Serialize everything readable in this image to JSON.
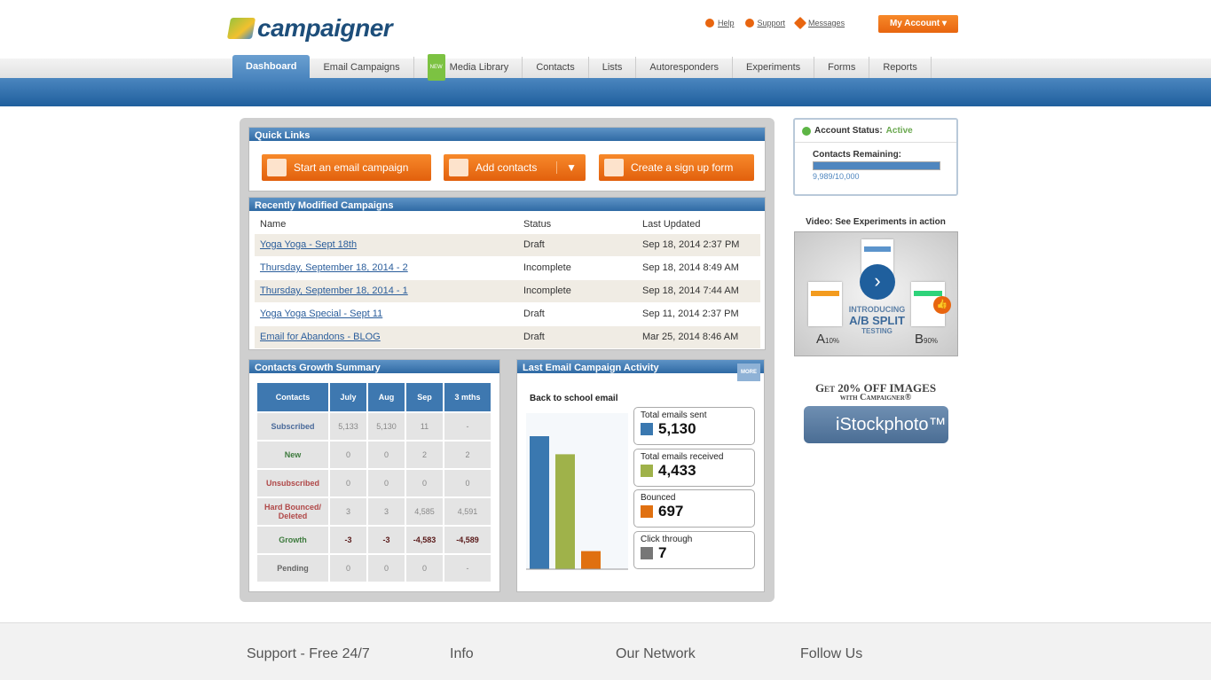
{
  "header": {
    "logo": "campaigner",
    "links": [
      {
        "label": "Help",
        "icon": "help-icon",
        "color": "#e8650f"
      },
      {
        "label": "Support",
        "icon": "support-icon",
        "color": "#e8650f"
      },
      {
        "label": "Messages",
        "icon": "messages-icon",
        "color": "#e8650f"
      }
    ],
    "my_account": "My Account ▾"
  },
  "nav": {
    "tabs": [
      {
        "label": "Dashboard",
        "active": true
      },
      {
        "label": "Email Campaigns"
      },
      {
        "label": "Media Library",
        "badge": "NEW"
      },
      {
        "label": "Contacts"
      },
      {
        "label": "Lists"
      },
      {
        "label": "Autoresponders"
      },
      {
        "label": "Experiments"
      },
      {
        "label": "Forms"
      },
      {
        "label": "Reports"
      }
    ]
  },
  "quick_links": {
    "title": "Quick Links",
    "buttons": [
      "Start an email campaign",
      "Add contacts",
      "Create a sign up form"
    ]
  },
  "recent": {
    "title": "Recently Modified Campaigns",
    "columns": [
      "Name",
      "Status",
      "Last Updated"
    ],
    "rows": [
      [
        "Yoga Yoga - Sept 18th",
        "Draft",
        "Sep 18, 2014 2:37 PM"
      ],
      [
        "Thursday, September 18, 2014 - 2",
        "Incomplete",
        "Sep 18, 2014 8:49 AM"
      ],
      [
        "Thursday, September 18, 2014 - 1",
        "Incomplete",
        "Sep 18, 2014 7:44 AM"
      ],
      [
        "Yoga Yoga Special - Sept 11",
        "Draft",
        "Sep 11, 2014 2:37 PM"
      ],
      [
        "Email for Abandons - BLOG",
        "Draft",
        "Mar 25, 2014 8:46 AM"
      ]
    ]
  },
  "growth": {
    "title": "Contacts Growth Summary",
    "columns": [
      "Contacts",
      "July",
      "Aug",
      "Sep",
      "3 mths"
    ],
    "rows": [
      {
        "label": "Subscribed",
        "color": "#4a6a9a",
        "values": [
          "5,133",
          "5,130",
          "11",
          "-"
        ]
      },
      {
        "label": "New",
        "color": "#3d7a3d",
        "values": [
          "0",
          "0",
          "2",
          "2"
        ]
      },
      {
        "label": "Unsubscribed",
        "color": "#b04848",
        "values": [
          "0",
          "0",
          "0",
          "0"
        ]
      },
      {
        "label": "Hard Bounced/ Deleted",
        "color": "#b04848",
        "values": [
          "3",
          "3",
          "4,585",
          "4,591"
        ]
      },
      {
        "label": "Growth",
        "color": "#3d7a3d",
        "values": [
          "-3",
          "-3",
          "-4,583",
          "-4,589"
        ]
      },
      {
        "label": "Pending",
        "color": "#666",
        "values": [
          "0",
          "0",
          "0",
          "-"
        ]
      }
    ]
  },
  "activity": {
    "title": "Last Email Campaign Activity",
    "more": "MORE",
    "campaign": "Back to school email",
    "stats": [
      {
        "label": "Total emails sent",
        "value": "5,130",
        "num": 5130,
        "color": "#3a78b0"
      },
      {
        "label": "Total emails received",
        "value": "4,433",
        "num": 4433,
        "color": "#9fb24a"
      },
      {
        "label": "Bounced",
        "value": "697",
        "num": 697,
        "color": "#e07010"
      },
      {
        "label": "Click through",
        "value": "7",
        "num": 7,
        "color": "#777"
      }
    ]
  },
  "account": {
    "status_label": "Account Status:",
    "status": "Active",
    "remaining_label": "Contacts Remaining:",
    "remaining": "9,989/10,000",
    "fraction": 0.9989
  },
  "video": {
    "title": "Video: See Experiments in action",
    "intro": "INTRODUCING",
    "headline": "A/B SPLIT",
    "sub": "TESTING",
    "a": "A",
    "a_pct": "10%",
    "b": "B",
    "b_pct": "90%"
  },
  "promo": {
    "line1": "Get 20% OFF IMAGES",
    "line2": "with Campaigner®",
    "brand": "iStockphoto™"
  },
  "footer": {
    "headings": [
      "Support - Free 24/7",
      "Info",
      "Our Network",
      "Follow Us"
    ]
  }
}
